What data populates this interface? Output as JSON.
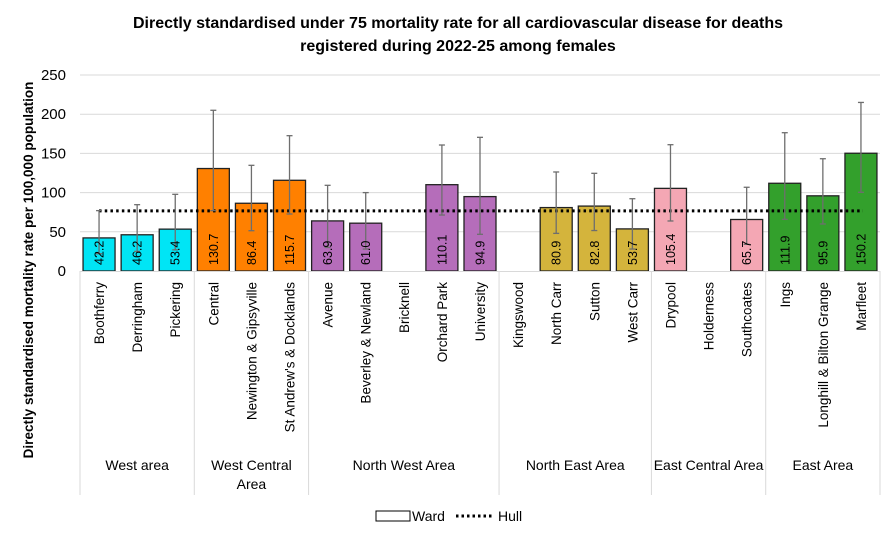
{
  "chart_data": {
    "type": "bar",
    "title": [
      "Directly standardised under 75 mortality rate for all cardiovascular disease for deaths",
      "registered during 2022-25 among females"
    ],
    "ylabel": "Directly standardised mortality rate per 100,000 population",
    "xlabel": "",
    "ylim": [
      0,
      250
    ],
    "yticks": [
      0,
      50,
      100,
      150,
      200,
      250
    ],
    "grid": true,
    "legend_position": "bottom",
    "legend": [
      {
        "label": "Ward",
        "style": "bar"
      },
      {
        "label": "Hull",
        "style": "dotted-line"
      }
    ],
    "reference_line": {
      "name": "Hull",
      "value": 76.7
    },
    "groups": [
      {
        "label": "West area",
        "color": "#00E5F5",
        "wards": [
          {
            "name": "Boothferry",
            "value": 42.2,
            "ci": [
              22,
              77
            ]
          },
          {
            "name": "Derringham",
            "value": 46.2,
            "ci": [
              25,
              84.6
            ]
          },
          {
            "name": "Pickering",
            "value": 53.4,
            "ci": [
              27,
              97.8
            ]
          }
        ]
      },
      {
        "label": "West Central Area",
        "color": "#FF8000",
        "wards": [
          {
            "name": "Central",
            "value": 130.7,
            "ci": [
              77,
              205
            ]
          },
          {
            "name": "Newington & Gipsyville",
            "value": 86.4,
            "ci": [
              51.4,
              134.8
            ]
          },
          {
            "name": "St Andrew's & Docklands",
            "value": 115.7,
            "ci": [
              72.7,
              172.6
            ]
          }
        ]
      },
      {
        "label": "North West Area",
        "color": "#B56DBA",
        "wards": [
          {
            "name": "Avenue",
            "value": 63.9,
            "ci": [
              30,
              109.3
            ]
          },
          {
            "name": "Beverley & Newland",
            "value": 61.0,
            "ci": [
              28,
              100
            ]
          },
          {
            "name": "Bricknell",
            "value": null,
            "ci": null
          },
          {
            "name": "Orchard Park",
            "value": 110.1,
            "ci": [
              71.4,
              160.7
            ]
          },
          {
            "name": "University",
            "value": 94.9,
            "ci": [
              46.8,
              170.5
            ]
          }
        ]
      },
      {
        "label": "North East Area",
        "color": "#D4B43C",
        "wards": [
          {
            "name": "Kingswood",
            "value": null,
            "ci": null
          },
          {
            "name": "North Carr",
            "value": 80.9,
            "ci": [
              48,
              126.3
            ]
          },
          {
            "name": "Sutton",
            "value": 82.8,
            "ci": [
              51.6,
              124.6
            ]
          },
          {
            "name": "West Carr",
            "value": 53.7,
            "ci": [
              28,
              92.2
            ]
          }
        ]
      },
      {
        "label": "East Central Area",
        "color": "#F4A7B4",
        "wards": [
          {
            "name": "Drypool",
            "value": 105.4,
            "ci": [
              63.8,
              161.1
            ]
          },
          {
            "name": "Holderness",
            "value": null,
            "ci": null
          },
          {
            "name": "Southcoates",
            "value": 65.7,
            "ci": [
              34,
              106.8
            ]
          }
        ]
      },
      {
        "label": "East Area",
        "color": "#33A02C",
        "wards": [
          {
            "name": "Ings",
            "value": 111.9,
            "ci": [
              65.9,
              176.4
            ]
          },
          {
            "name": "Longhill & Bilton Grange",
            "value": 95.9,
            "ci": [
              60,
              143.2
            ]
          },
          {
            "name": "Marfleet",
            "value": 150.2,
            "ci": [
              100.4,
              215
            ]
          }
        ]
      }
    ]
  }
}
